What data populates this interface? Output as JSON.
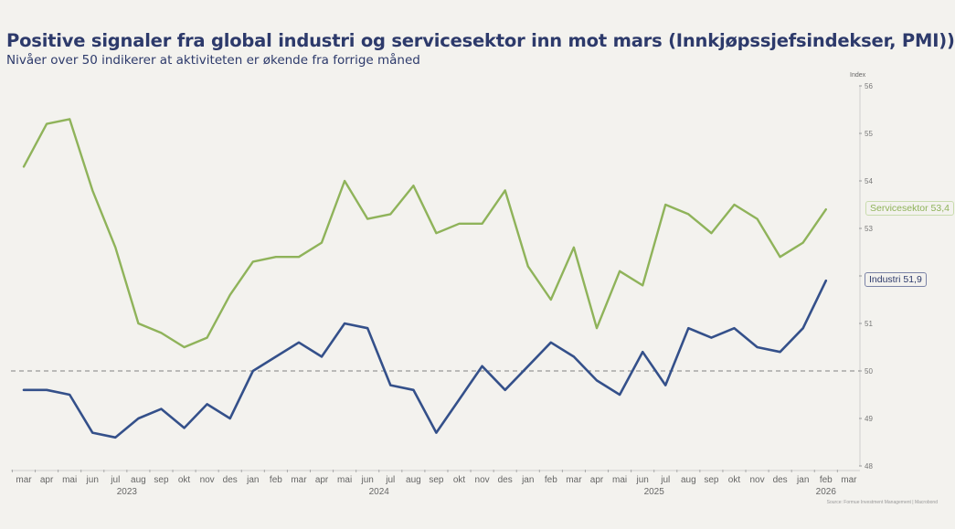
{
  "header": {
    "title": "Positive signaler fra global industri og servicesektor inn mot mars (Innkjøpssjefsindekser, PMI))",
    "subtitle": "Nivåer over 50 indikerer at aktiviteten er økende fra forrige måned"
  },
  "source": "Source: Formue Investment Management | Macrobond",
  "colors": {
    "services": "#8fb35a",
    "industry": "#34508a",
    "reference": "#999999",
    "background": "#f3f2ee"
  },
  "chart_data": {
    "type": "line",
    "title": "Positive signaler fra global industri og servicesektor inn mot mars (Innkjøpssjefsindekser, PMI))",
    "subtitle": "Nivåer over 50 indikerer at aktiviteten er økende fra forrige måned",
    "xlabel": "",
    "ylabel": "Index",
    "ylim": [
      48,
      56
    ],
    "y_ticks": [
      "56",
      "55",
      "54",
      "53",
      "52",
      "51",
      "50",
      "49",
      "48"
    ],
    "y_axis_side": "right",
    "grid": false,
    "reference_line": {
      "value": 50,
      "style": "dashed"
    },
    "x_tick_labels": [
      "mar",
      "apr",
      "mai",
      "jun",
      "jul",
      "aug",
      "sep",
      "okt",
      "nov",
      "des",
      "jan",
      "feb",
      "mar",
      "apr",
      "mai",
      "jun",
      "jul",
      "aug",
      "sep",
      "okt",
      "nov",
      "des",
      "jan",
      "feb",
      "mar",
      "apr",
      "mai",
      "jun",
      "jul",
      "aug",
      "sep",
      "okt",
      "nov",
      "des",
      "jan",
      "feb",
      "mar"
    ],
    "year_labels": [
      {
        "label": "2023",
        "at_index": 4.5
      },
      {
        "label": "2024",
        "at_index": 15.5
      },
      {
        "label": "2025",
        "at_index": 27.5
      },
      {
        "label": "2026",
        "at_index": 35
      }
    ],
    "categories": [
      "2023-03",
      "2023-04",
      "2023-05",
      "2023-06",
      "2023-07",
      "2023-08",
      "2023-09",
      "2023-10",
      "2023-11",
      "2023-12",
      "2024-01",
      "2024-02",
      "2024-03",
      "2024-04",
      "2024-05",
      "2024-06",
      "2024-07",
      "2024-08",
      "2024-09",
      "2024-10",
      "2024-11",
      "2024-12",
      "2025-01",
      "2025-02",
      "2025-03",
      "2025-04",
      "2025-05",
      "2025-06",
      "2025-07",
      "2025-08",
      "2025-09",
      "2025-10",
      "2025-11",
      "2025-12",
      "2026-01",
      "2026-02"
    ],
    "series": [
      {
        "name": "Servicesektor",
        "end_label": "Servicesektor 53,4",
        "values": [
          54.3,
          55.2,
          55.3,
          53.8,
          52.6,
          51.0,
          50.8,
          50.5,
          50.7,
          51.6,
          52.3,
          52.4,
          52.4,
          52.7,
          54.0,
          53.2,
          53.3,
          53.9,
          52.9,
          53.1,
          53.1,
          53.8,
          52.2,
          51.5,
          52.6,
          50.9,
          52.1,
          51.8,
          53.5,
          53.3,
          52.9,
          53.5,
          53.2,
          52.4,
          52.7,
          53.4
        ]
      },
      {
        "name": "Industri",
        "end_label": "Industri 51,9",
        "values": [
          49.6,
          49.6,
          49.5,
          48.7,
          48.6,
          49.0,
          49.2,
          48.8,
          49.3,
          49.0,
          50.0,
          50.3,
          50.6,
          50.3,
          51.0,
          50.9,
          49.7,
          49.6,
          48.7,
          49.4,
          50.1,
          49.6,
          50.1,
          50.6,
          50.3,
          49.8,
          49.5,
          50.4,
          49.7,
          50.9,
          50.7,
          50.9,
          50.5,
          50.4,
          50.9,
          51.9
        ]
      }
    ],
    "legend": "end-labels-right"
  }
}
